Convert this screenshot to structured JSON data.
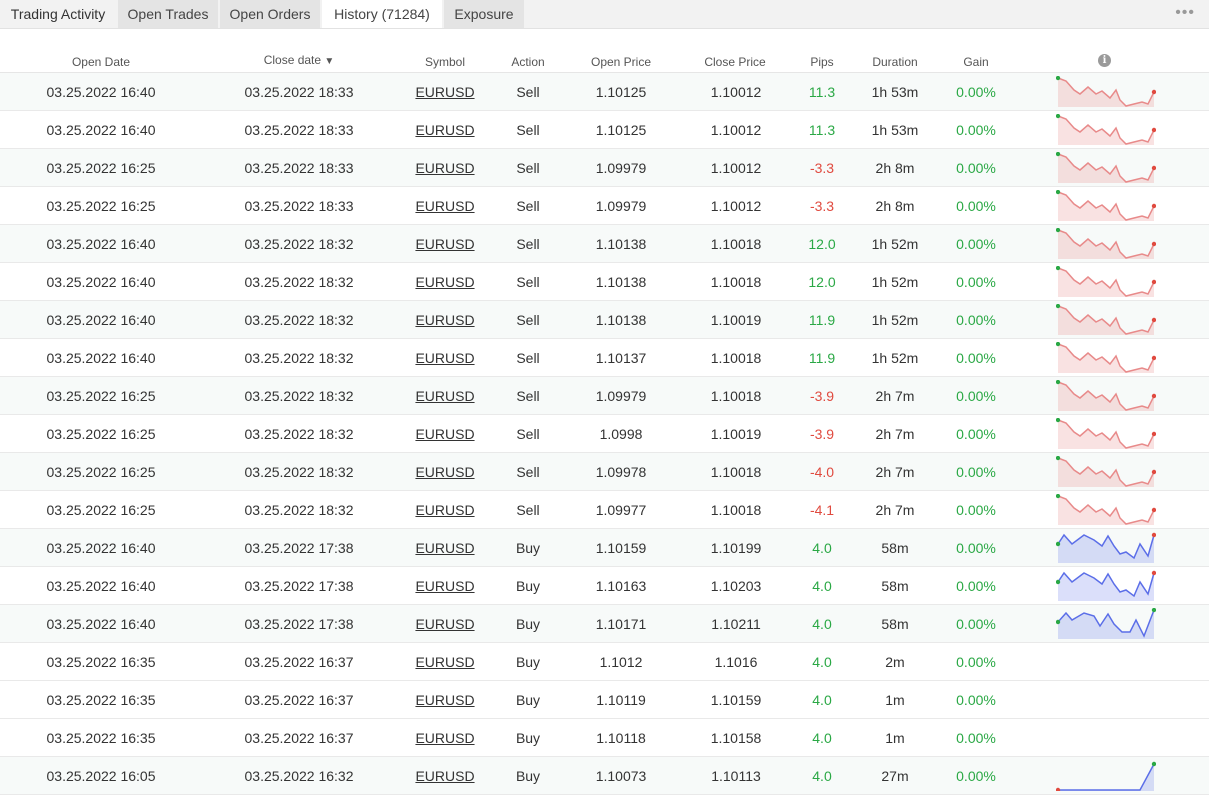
{
  "tabs": [
    {
      "label": "Trading Activity"
    },
    {
      "label": "Open Trades"
    },
    {
      "label": "Open Orders"
    },
    {
      "label": "History (71284)"
    },
    {
      "label": "Exposure"
    }
  ],
  "more_icon": "ellipsis-icon",
  "columns": {
    "open_date": "Open Date",
    "close_date": "Close date",
    "sort_indicator": "▼",
    "symbol": "Symbol",
    "action": "Action",
    "open_price": "Open Price",
    "close_price": "Close Price",
    "pips": "Pips",
    "duration": "Duration",
    "gain": "Gain",
    "chart_icon": "info-icon"
  },
  "colors": {
    "positive": "#2aa845",
    "negative": "#e04a3f",
    "sell_spark": "#e88a8a",
    "buy_spark": "#5b6ee8"
  },
  "rows": [
    {
      "open_date": "03.25.2022 16:40",
      "close_date": "03.25.2022 18:33",
      "symbol": "EURUSD",
      "action": "Sell",
      "open_price": "1.10125",
      "close_price": "1.10012",
      "pips": "11.3",
      "duration": "1h 53m",
      "gain": "0.00%",
      "spark": "sell"
    },
    {
      "open_date": "03.25.2022 16:40",
      "close_date": "03.25.2022 18:33",
      "symbol": "EURUSD",
      "action": "Sell",
      "open_price": "1.10125",
      "close_price": "1.10012",
      "pips": "11.3",
      "duration": "1h 53m",
      "gain": "0.00%",
      "spark": "sell"
    },
    {
      "open_date": "03.25.2022 16:25",
      "close_date": "03.25.2022 18:33",
      "symbol": "EURUSD",
      "action": "Sell",
      "open_price": "1.09979",
      "close_price": "1.10012",
      "pips": "-3.3",
      "duration": "2h 8m",
      "gain": "0.00%",
      "spark": "sell"
    },
    {
      "open_date": "03.25.2022 16:25",
      "close_date": "03.25.2022 18:33",
      "symbol": "EURUSD",
      "action": "Sell",
      "open_price": "1.09979",
      "close_price": "1.10012",
      "pips": "-3.3",
      "duration": "2h 8m",
      "gain": "0.00%",
      "spark": "sell"
    },
    {
      "open_date": "03.25.2022 16:40",
      "close_date": "03.25.2022 18:32",
      "symbol": "EURUSD",
      "action": "Sell",
      "open_price": "1.10138",
      "close_price": "1.10018",
      "pips": "12.0",
      "duration": "1h 52m",
      "gain": "0.00%",
      "spark": "sell"
    },
    {
      "open_date": "03.25.2022 16:40",
      "close_date": "03.25.2022 18:32",
      "symbol": "EURUSD",
      "action": "Sell",
      "open_price": "1.10138",
      "close_price": "1.10018",
      "pips": "12.0",
      "duration": "1h 52m",
      "gain": "0.00%",
      "spark": "sell"
    },
    {
      "open_date": "03.25.2022 16:40",
      "close_date": "03.25.2022 18:32",
      "symbol": "EURUSD",
      "action": "Sell",
      "open_price": "1.10138",
      "close_price": "1.10019",
      "pips": "11.9",
      "duration": "1h 52m",
      "gain": "0.00%",
      "spark": "sell"
    },
    {
      "open_date": "03.25.2022 16:40",
      "close_date": "03.25.2022 18:32",
      "symbol": "EURUSD",
      "action": "Sell",
      "open_price": "1.10137",
      "close_price": "1.10018",
      "pips": "11.9",
      "duration": "1h 52m",
      "gain": "0.00%",
      "spark": "sell"
    },
    {
      "open_date": "03.25.2022 16:25",
      "close_date": "03.25.2022 18:32",
      "symbol": "EURUSD",
      "action": "Sell",
      "open_price": "1.09979",
      "close_price": "1.10018",
      "pips": "-3.9",
      "duration": "2h 7m",
      "gain": "0.00%",
      "spark": "sell"
    },
    {
      "open_date": "03.25.2022 16:25",
      "close_date": "03.25.2022 18:32",
      "symbol": "EURUSD",
      "action": "Sell",
      "open_price": "1.0998",
      "close_price": "1.10019",
      "pips": "-3.9",
      "duration": "2h 7m",
      "gain": "0.00%",
      "spark": "sell"
    },
    {
      "open_date": "03.25.2022 16:25",
      "close_date": "03.25.2022 18:32",
      "symbol": "EURUSD",
      "action": "Sell",
      "open_price": "1.09978",
      "close_price": "1.10018",
      "pips": "-4.0",
      "duration": "2h 7m",
      "gain": "0.00%",
      "spark": "sell"
    },
    {
      "open_date": "03.25.2022 16:25",
      "close_date": "03.25.2022 18:32",
      "symbol": "EURUSD",
      "action": "Sell",
      "open_price": "1.09977",
      "close_price": "1.10018",
      "pips": "-4.1",
      "duration": "2h 7m",
      "gain": "0.00%",
      "spark": "sell"
    },
    {
      "open_date": "03.25.2022 16:40",
      "close_date": "03.25.2022 17:38",
      "symbol": "EURUSD",
      "action": "Buy",
      "open_price": "1.10159",
      "close_price": "1.10199",
      "pips": "4.0",
      "duration": "58m",
      "gain": "0.00%",
      "spark": "buy"
    },
    {
      "open_date": "03.25.2022 16:40",
      "close_date": "03.25.2022 17:38",
      "symbol": "EURUSD",
      "action": "Buy",
      "open_price": "1.10163",
      "close_price": "1.10203",
      "pips": "4.0",
      "duration": "58m",
      "gain": "0.00%",
      "spark": "buy"
    },
    {
      "open_date": "03.25.2022 16:40",
      "close_date": "03.25.2022 17:38",
      "symbol": "EURUSD",
      "action": "Buy",
      "open_price": "1.10171",
      "close_price": "1.10211",
      "pips": "4.0",
      "duration": "58m",
      "gain": "0.00%",
      "spark": "buy2"
    },
    {
      "open_date": "03.25.2022 16:35",
      "close_date": "03.25.2022 16:37",
      "symbol": "EURUSD",
      "action": "Buy",
      "open_price": "1.1012",
      "close_price": "1.1016",
      "pips": "4.0",
      "duration": "2m",
      "gain": "0.00%",
      "spark": "none"
    },
    {
      "open_date": "03.25.2022 16:35",
      "close_date": "03.25.2022 16:37",
      "symbol": "EURUSD",
      "action": "Buy",
      "open_price": "1.10119",
      "close_price": "1.10159",
      "pips": "4.0",
      "duration": "1m",
      "gain": "0.00%",
      "spark": "none"
    },
    {
      "open_date": "03.25.2022 16:35",
      "close_date": "03.25.2022 16:37",
      "symbol": "EURUSD",
      "action": "Buy",
      "open_price": "1.10118",
      "close_price": "1.10158",
      "pips": "4.0",
      "duration": "1m",
      "gain": "0.00%",
      "spark": "none"
    },
    {
      "open_date": "03.25.2022 16:05",
      "close_date": "03.25.2022 16:32",
      "symbol": "EURUSD",
      "action": "Buy",
      "open_price": "1.10073",
      "close_price": "1.10113",
      "pips": "4.0",
      "duration": "27m",
      "gain": "0.00%",
      "spark": "flatup"
    }
  ]
}
